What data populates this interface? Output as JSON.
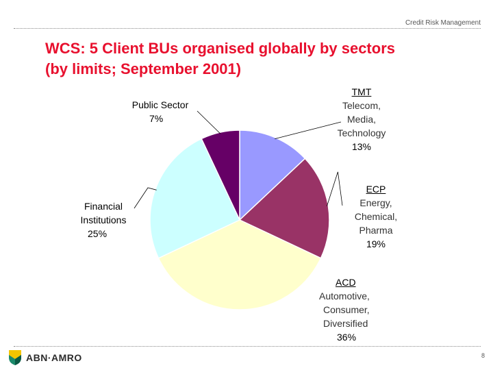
{
  "header": {
    "text": "Credit Risk Management"
  },
  "title": {
    "line1": "WCS: 5 Client BUs organised globally by sectors",
    "line2": "(by limits; September 2001)"
  },
  "chart_data": {
    "type": "pie",
    "slices": [
      {
        "name": "TMT",
        "desc_lines": [
          "Telecom,",
          "Media,",
          "Technology"
        ],
        "value": 13,
        "value_label": "13%",
        "color": "#9999ff"
      },
      {
        "name": "ECP",
        "desc_lines": [
          "Energy,",
          "Chemical,",
          "Pharma"
        ],
        "value": 19,
        "value_label": "19%",
        "color": "#993366"
      },
      {
        "name": "ACD",
        "desc_lines": [
          "Automotive,",
          "Consumer,",
          "Diversified"
        ],
        "value": 36,
        "value_label": "36%",
        "color": "#ffffcc"
      },
      {
        "name": "Financial Institutions",
        "desc_lines": [],
        "value": 25,
        "value_label": "25%",
        "color": "#ccffff"
      },
      {
        "name": "Public Sector",
        "desc_lines": [],
        "value": 7,
        "value_label": "7%",
        "color": "#660066"
      }
    ],
    "start": "12 o'clock",
    "direction": "clockwise"
  },
  "footer": {
    "logo_text": "ABN·AMRO",
    "page_number": "8"
  }
}
